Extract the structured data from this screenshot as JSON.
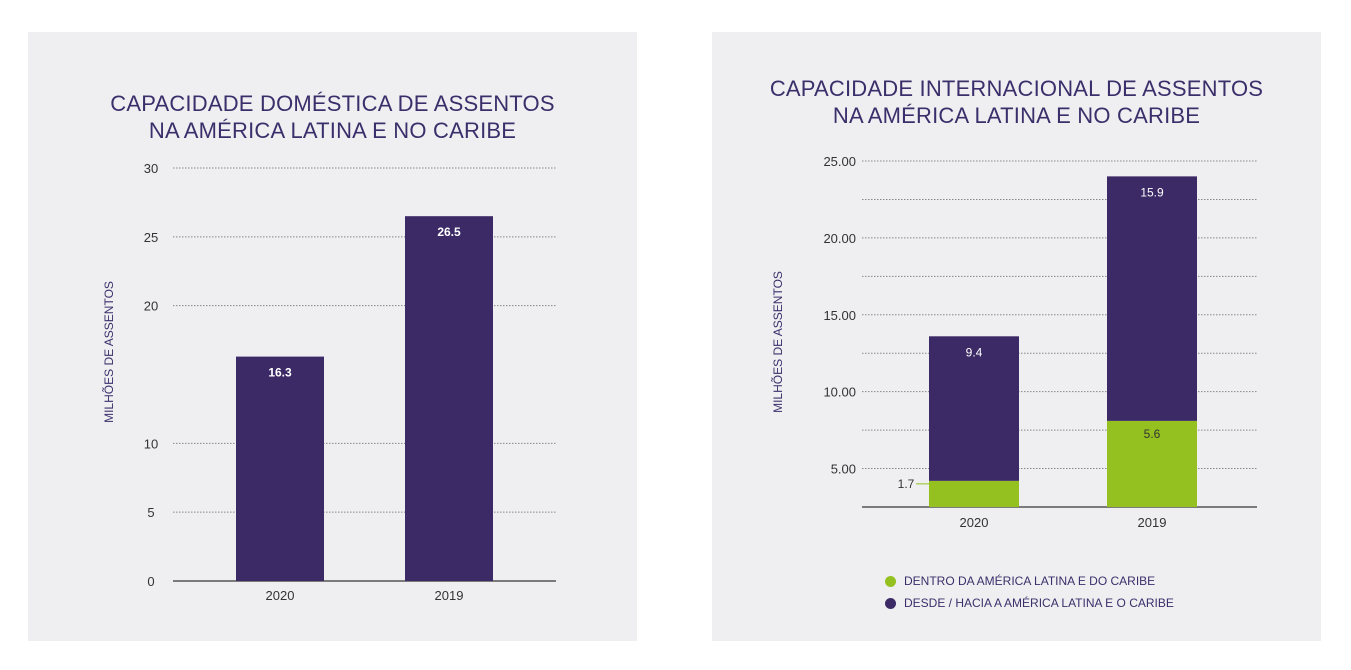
{
  "colors": {
    "purple": "#3b2a66",
    "green": "#94c11f",
    "title": "#3b2f6b",
    "panel": "#efeff1"
  },
  "chart_data": [
    {
      "type": "bar",
      "title": [
        "CAPACIDADE DOMÉSTICA DE ASSENTOS",
        "NA AMÉRICA LATINA E NO CARIBE"
      ],
      "ylabel": "MILHÕES DE ASSENTOS",
      "categories": [
        "2020",
        "2019"
      ],
      "values": [
        16.3,
        26.5
      ],
      "value_labels": [
        "16.3",
        "26.5"
      ],
      "ylim": [
        0,
        30
      ],
      "yticks": [
        0,
        5,
        10,
        20,
        25,
        30
      ],
      "ytick_labels": [
        "0",
        "5",
        "10",
        "20",
        "25",
        "30"
      ],
      "grid": true
    },
    {
      "type": "bar",
      "stacked": true,
      "title": [
        "CAPACIDADE INTERNACIONAL DE ASSENTOS",
        "NA AMÉRICA LATINA E NO CARIBE"
      ],
      "ylabel": "MILHÕES DE ASSENTOS",
      "categories": [
        "2020",
        "2019"
      ],
      "series": [
        {
          "name": "DENTRO DA AMÉRICA LATINA E DO CARIBE",
          "values": [
            1.7,
            5.6
          ],
          "labels": [
            "1.7",
            "5.6"
          ]
        },
        {
          "name": "DESDE / HACIA A AMÉRICA LATINA E O CARIBE",
          "values": [
            9.4,
            15.9
          ],
          "labels": [
            "9.4",
            "15.9"
          ]
        }
      ],
      "ylim": [
        2.5,
        25
      ],
      "yticks": [
        5,
        10,
        15,
        20,
        25
      ],
      "ytick_labels": [
        "5.00",
        "10.00",
        "15.00",
        "20.00",
        "25.00"
      ],
      "legend_position": "bottom",
      "grid": true
    }
  ]
}
